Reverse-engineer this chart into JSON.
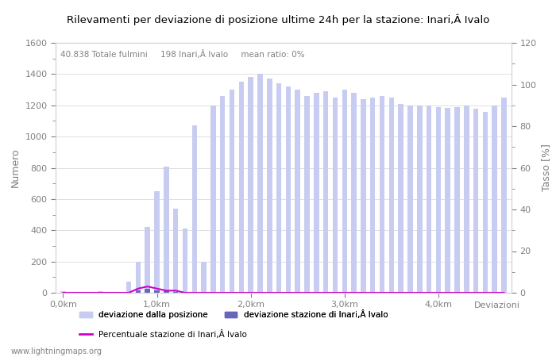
{
  "title": "Rilevamenti per deviazione di posizione ultime 24h per la stazione: Inari,Â Ivalo",
  "subtitle": "40.838 Totale fulmini     198 Inari,Â Ivalo     mean ratio: 0%",
  "ylabel_left": "Numero",
  "ylabel_right": "Tasso [%]",
  "xlabel": "Deviazioni",
  "ylim_left": [
    0,
    1600
  ],
  "ylim_right": [
    0,
    120
  ],
  "watermark": "www.lightningmaps.org",
  "legend_labels": [
    "deviazione dalla posizione",
    "deviazione stazione di Inari,Â Ivalo",
    "Percentuale stazione di Inari,Â Ivalo"
  ],
  "bar_color_light": "#c8ccf0",
  "bar_color_dark": "#6666bb",
  "line_color": "#cc00cc",
  "x_tick_labels": [
    "0,0km",
    "1,0km",
    "2,0km",
    "3,0km",
    "4,0km"
  ],
  "x_tick_positions": [
    0,
    10,
    20,
    30,
    40
  ],
  "bar_width": 0.55,
  "n_bars": 48,
  "values_light": [
    10,
    5,
    5,
    5,
    10,
    5,
    5,
    70,
    200,
    420,
    650,
    810,
    540,
    410,
    1070,
    200,
    1200,
    1260,
    1300,
    1350,
    1380,
    1400,
    1370,
    1340,
    1320,
    1300,
    1260,
    1280,
    1290,
    1250,
    1300,
    1280,
    1240,
    1250,
    1260,
    1250,
    1210,
    1200,
    1200,
    1200,
    1190,
    1185,
    1190,
    1200,
    1180,
    1160,
    1200,
    1250
  ],
  "values_dark": [
    2,
    2,
    2,
    2,
    2,
    2,
    2,
    5,
    15,
    25,
    15,
    10,
    5,
    3,
    5,
    3,
    2,
    2,
    2,
    2,
    2,
    2,
    2,
    5,
    2,
    2,
    2,
    2,
    2,
    2,
    2,
    2,
    2,
    2,
    2,
    2,
    5,
    2,
    2,
    2,
    2,
    2,
    2,
    2,
    2,
    2,
    2,
    2
  ],
  "values_ratio": [
    0,
    0,
    0,
    0,
    0,
    0,
    0,
    0,
    2,
    3,
    2,
    1,
    1,
    0,
    0,
    0,
    0,
    0,
    0,
    0,
    0,
    0,
    0,
    0,
    0,
    0,
    0,
    0,
    0,
    0,
    0,
    0,
    0,
    0,
    0,
    0,
    0,
    0,
    0,
    0,
    0,
    0,
    0,
    0,
    0,
    0,
    0,
    0
  ]
}
